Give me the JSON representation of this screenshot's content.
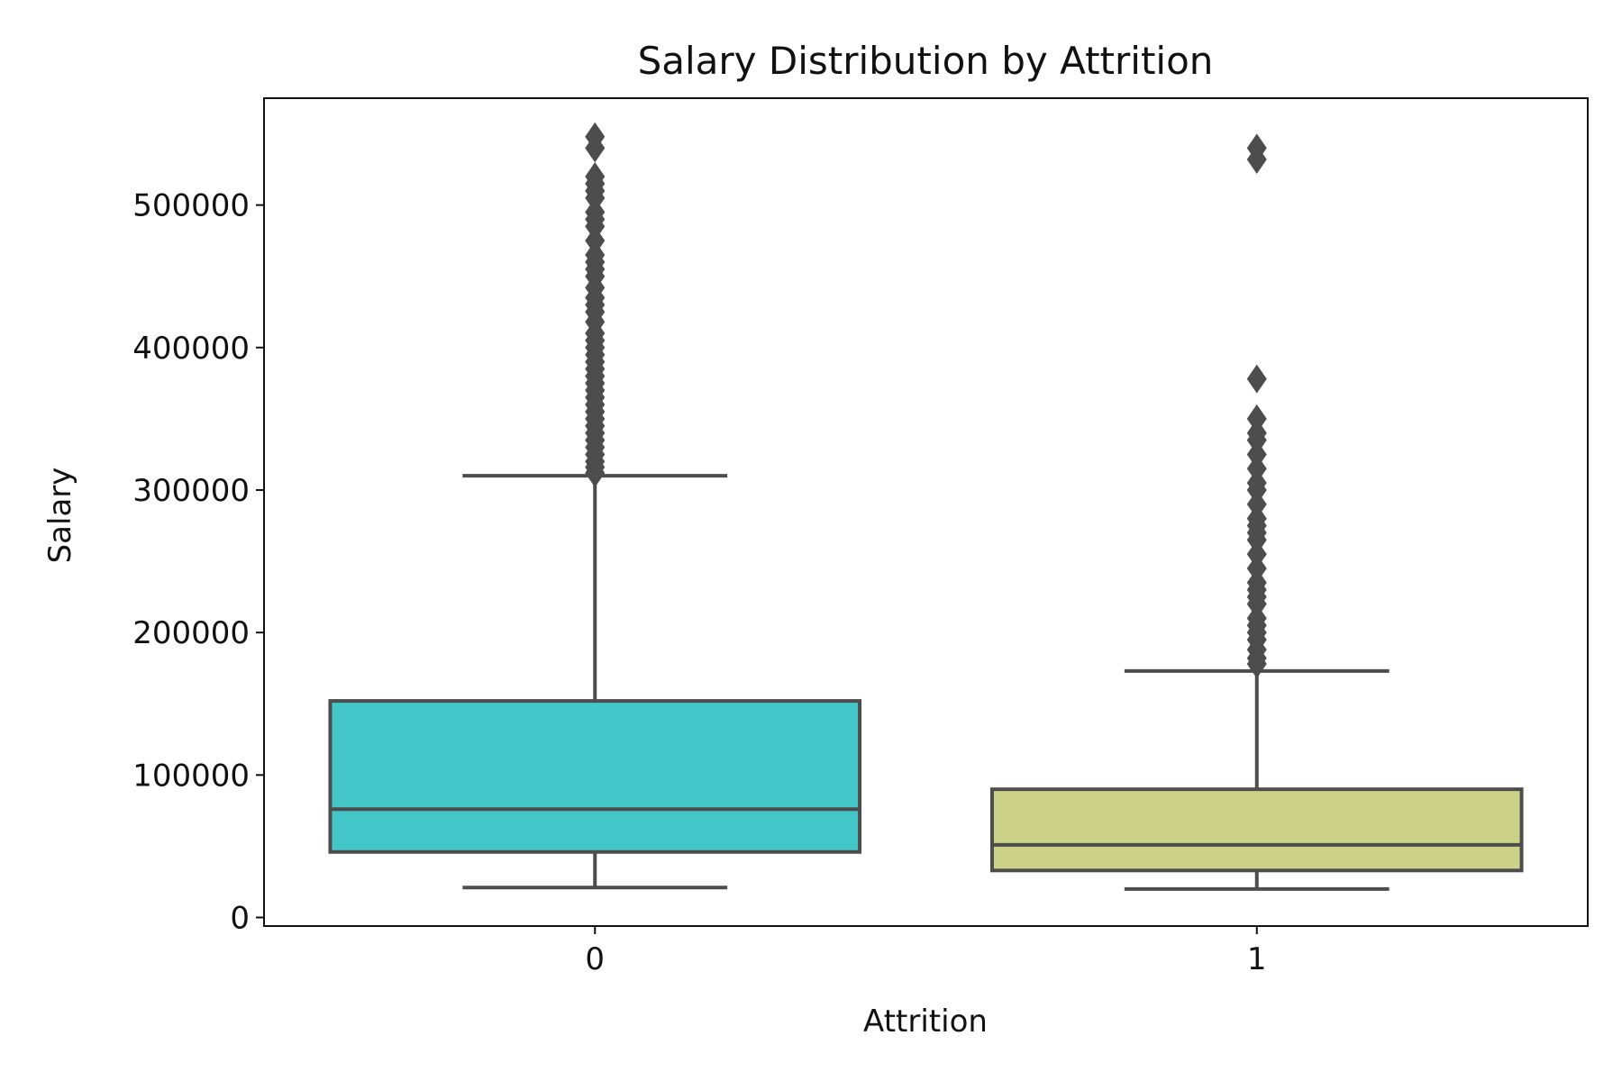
{
  "chart_data": {
    "type": "box",
    "title": "Salary Distribution by Attrition",
    "xlabel": "Attrition",
    "ylabel": "Salary",
    "categories": [
      "0",
      "1"
    ],
    "y_ticks": [
      0,
      100000,
      200000,
      300000,
      400000,
      500000
    ],
    "y_tick_labels": [
      "0",
      "100000",
      "200000",
      "300000",
      "400000",
      "500000"
    ],
    "ylim": [
      -6000,
      575000
    ],
    "grid": false,
    "line_color": "#4d4d4d",
    "boxes": [
      {
        "category": "0",
        "color": "#42c6c8",
        "whisker_low": 21000,
        "q1": 46000,
        "median": 76000,
        "q3": 152000,
        "whisker_high": 310000,
        "outliers": [
          312000,
          316000,
          320000,
          325000,
          330000,
          335000,
          340000,
          345000,
          350000,
          355000,
          360000,
          365000,
          370000,
          375000,
          380000,
          385000,
          390000,
          395000,
          400000,
          405000,
          410000,
          418000,
          425000,
          430000,
          435000,
          442000,
          450000,
          455000,
          460000,
          465000,
          475000,
          485000,
          490000,
          495000,
          505000,
          510000,
          515000,
          520000,
          540000,
          548000
        ]
      },
      {
        "category": "1",
        "color": "#cbd287",
        "whisker_low": 20000,
        "q1": 33000,
        "median": 51000,
        "q3": 90000,
        "whisker_high": 173000,
        "outliers": [
          178000,
          182000,
          188000,
          195000,
          200000,
          205000,
          210000,
          220000,
          225000,
          230000,
          235000,
          245000,
          255000,
          265000,
          270000,
          275000,
          280000,
          290000,
          300000,
          305000,
          315000,
          325000,
          335000,
          340000,
          350000,
          378000,
          532000,
          540000
        ]
      }
    ]
  }
}
